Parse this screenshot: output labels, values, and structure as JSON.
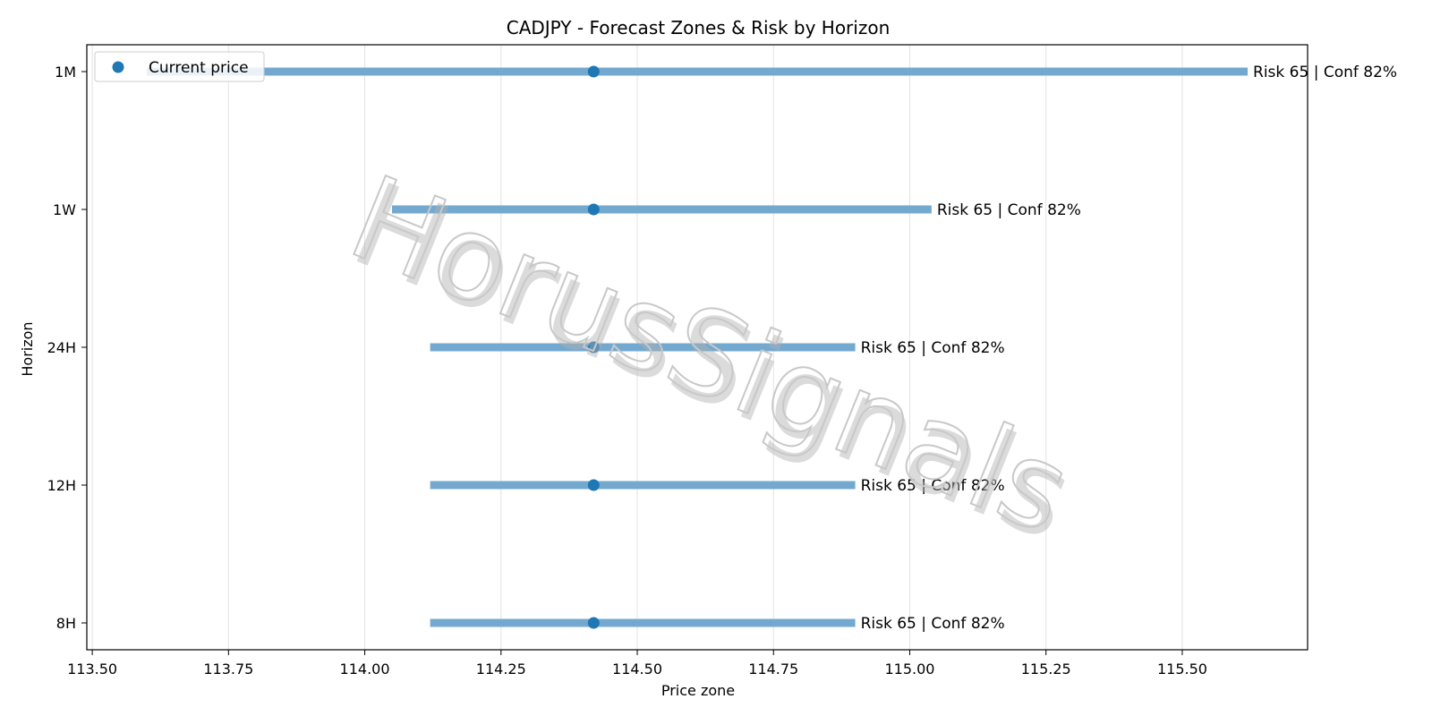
{
  "chart_data": {
    "type": "range",
    "title": "CADJPY - Forecast Zones & Risk by Horizon",
    "xlabel": "Price zone",
    "ylabel": "Horizon",
    "xlim": [
      113.49,
      115.73
    ],
    "x_ticks": [
      113.5,
      113.75,
      114.0,
      114.25,
      114.5,
      114.75,
      115.0,
      115.25,
      115.5
    ],
    "x_tick_labels": [
      "113.50",
      "113.75",
      "114.00",
      "114.25",
      "114.50",
      "114.75",
      "115.00",
      "115.25",
      "115.50"
    ],
    "grid": "x",
    "legend": {
      "position": "top-left",
      "entries": [
        "Current price"
      ]
    },
    "current_price": 114.42,
    "horizons": [
      {
        "label": "1M",
        "low": 113.6,
        "high": 115.62,
        "annotation": "Risk 65 | Conf 82%"
      },
      {
        "label": "1W",
        "low": 114.05,
        "high": 115.04,
        "annotation": "Risk 65 | Conf 82%"
      },
      {
        "label": "24H",
        "low": 114.12,
        "high": 114.9,
        "annotation": "Risk 65 | Conf 82%"
      },
      {
        "label": "12H",
        "low": 114.12,
        "high": 114.9,
        "annotation": "Risk 65 | Conf 82%"
      },
      {
        "label": "8H",
        "low": 114.12,
        "high": 114.9,
        "annotation": "Risk 65 | Conf 82%"
      }
    ],
    "colors": {
      "range_bar": "#74a9cf",
      "current_point": "#1f77b4",
      "grid": "#e3e3e3",
      "watermark": "#c8c8c8"
    },
    "watermark": "HorusSignals"
  }
}
